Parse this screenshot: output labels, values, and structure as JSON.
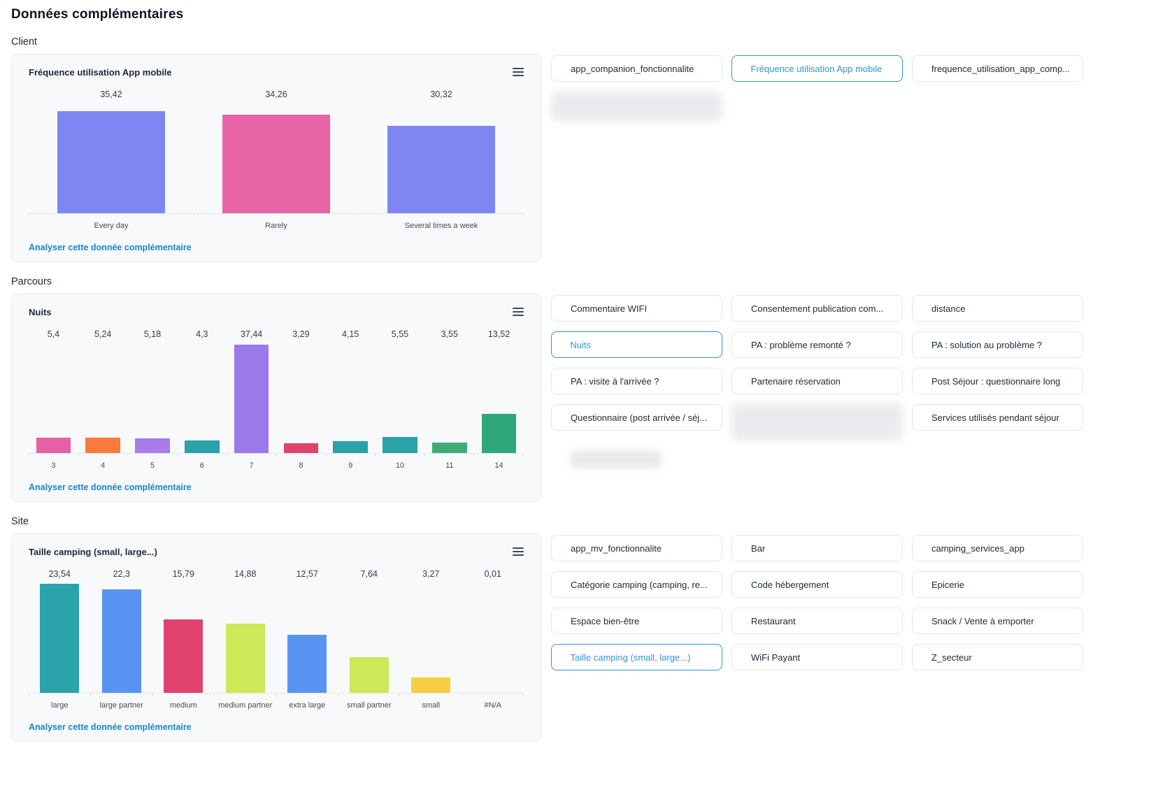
{
  "page": {
    "title": "Données complémentaires"
  },
  "colors": {
    "accent_blue": "#2e96d2",
    "link_blue": "#1886c9",
    "card_bg": "#f8f9fb",
    "card_border": "#e8eaef"
  },
  "icons": {
    "card_menu": "hamburger-menu-icon"
  },
  "sections": [
    {
      "label": "Client",
      "card": {
        "title": "Fréquence utilisation App mobile",
        "link": "Analyser cette donnée complémentaire",
        "chart_index": 0
      },
      "chips": [
        {
          "label": "app_companion_fonctionnalite"
        },
        {
          "label": "Fréquence utilisation App mobile",
          "selected": true
        },
        {
          "label": "frequence_utilisation_app_comp..."
        },
        {
          "blurred": true
        }
      ]
    },
    {
      "label": "Parcours",
      "card": {
        "title": "Nuits",
        "link": "Analyser cette donnée complémentaire",
        "chart_index": 1
      },
      "chips": [
        {
          "label": "Commentaire WIFI"
        },
        {
          "label": "Consentement publication com..."
        },
        {
          "label": "distance"
        },
        {
          "label": "Nuits",
          "selected": true
        },
        {
          "label": "PA : problème remonté ?"
        },
        {
          "label": "PA : solution au problème ?"
        },
        {
          "label": "PA : visite à l'arrivée ?"
        },
        {
          "label": "Partenaire réservation"
        },
        {
          "label": "Post Séjour : questionnaire long"
        },
        {
          "label": "Questionnaire (post arrivée / séj..."
        },
        {
          "blurred": true,
          "tall": true
        },
        {
          "label": "Services utilisés pendant séjour"
        },
        {
          "blurred": true,
          "small": true
        }
      ]
    },
    {
      "label": "Site",
      "card": {
        "title": "Taille camping (small, large...)",
        "link": "Analyser cette donnée complémentaire",
        "chart_index": 2
      },
      "chips": [
        {
          "label": "app_mv_fonctionnalite"
        },
        {
          "label": "Bar"
        },
        {
          "label": "camping_services_app"
        },
        {
          "label": "Catégorie camping (camping, re..."
        },
        {
          "label": "Code hébergement"
        },
        {
          "label": "Epicerie"
        },
        {
          "label": "Espace bien-être"
        },
        {
          "label": "Restaurant"
        },
        {
          "label": "Snack / Vente à emporter"
        },
        {
          "label": "Taille camping (small, large...)",
          "selected": true
        },
        {
          "label": "WiFi Payant"
        },
        {
          "label": "Z_secteur"
        }
      ]
    }
  ],
  "chart_data": [
    {
      "type": "bar",
      "title": "Fréquence utilisation App mobile",
      "categories": [
        "Every day",
        "Rarely",
        "Several times a week"
      ],
      "values": [
        35.42,
        34.26,
        30.32
      ],
      "values_display": [
        "35,42",
        "34,26",
        "30,32"
      ],
      "colors": [
        "#7e87f1",
        "#e765a7",
        "#7e87f1"
      ],
      "xlabel": "",
      "ylabel": "",
      "grid": false,
      "value_labels_position": "top-aligned-row"
    },
    {
      "type": "bar",
      "title": "Nuits",
      "categories": [
        "3",
        "4",
        "5",
        "6",
        "7",
        "8",
        "9",
        "10",
        "11",
        "14"
      ],
      "values": [
        5.4,
        5.24,
        5.18,
        4.3,
        37.44,
        3.29,
        4.15,
        5.55,
        3.55,
        13.52
      ],
      "values_display": [
        "5,4",
        "5,24",
        "5,18",
        "4,3",
        "37,44",
        "3,29",
        "4,15",
        "5,55",
        "3,55",
        "13,52"
      ],
      "colors": [
        "#e461a6",
        "#f87b3d",
        "#a87ce9",
        "#2ba1aa",
        "#9b79eb",
        "#e0436b",
        "#2ba1aa",
        "#2ba1aa",
        "#41ab78",
        "#2ea87b"
      ],
      "xlabel": "",
      "ylabel": "",
      "grid": false,
      "value_labels_position": "top-aligned-row"
    },
    {
      "type": "bar",
      "title": "Taille camping (small, large...)",
      "categories": [
        "large",
        "large partner",
        "medium",
        "medium partner",
        "extra large",
        "small partner",
        "small",
        "#N/A"
      ],
      "values": [
        23.54,
        22.3,
        15.79,
        14.88,
        12.57,
        7.64,
        3.27,
        0.01
      ],
      "values_display": [
        "23,54",
        "22,3",
        "15,79",
        "14,88",
        "12,57",
        "7,64",
        "3,27",
        "0,01"
      ],
      "colors": [
        "#2aa3ab",
        "#5a94f2",
        "#e2436c",
        "#cbe958",
        "#5a94f2",
        "#cbe958",
        "#f6ce42",
        "#cccccc"
      ],
      "xlabel": "",
      "ylabel": "",
      "grid": false,
      "value_labels_position": "top-aligned-row"
    }
  ]
}
